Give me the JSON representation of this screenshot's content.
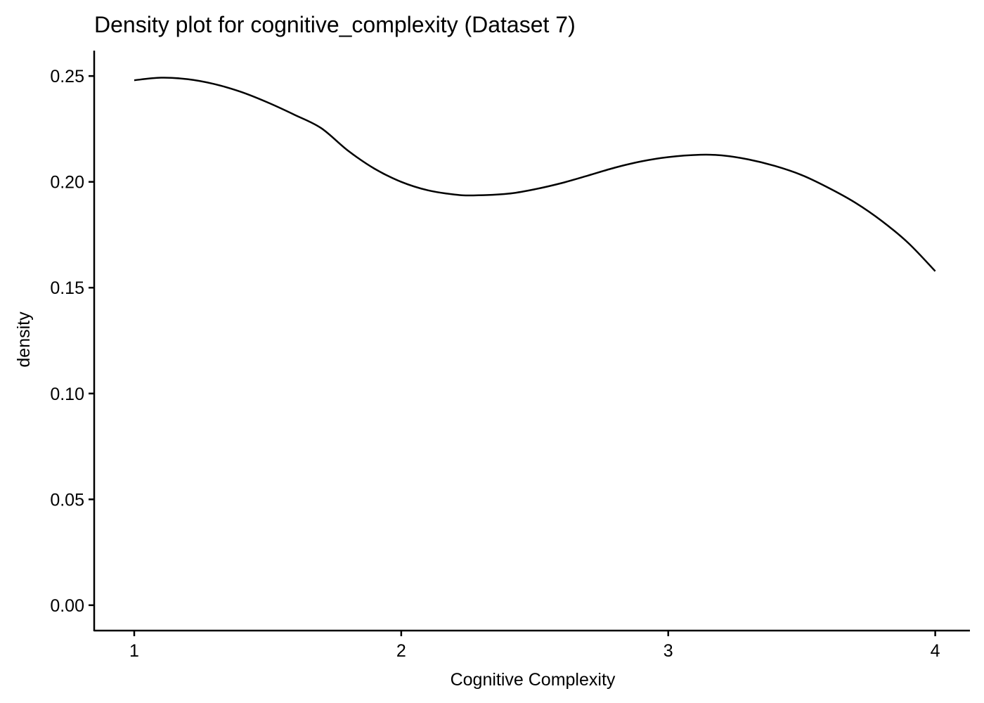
{
  "chart_data": {
    "type": "line",
    "title": "Density plot for cognitive_complexity (Dataset 7)",
    "xlabel": "Cognitive Complexity",
    "ylabel": "density",
    "xlim": [
      0.85,
      4.13
    ],
    "ylim": [
      -0.012,
      0.262
    ],
    "x_ticks": [
      1,
      2,
      3,
      4
    ],
    "x_tick_labels": [
      "1",
      "2",
      "3",
      "4"
    ],
    "y_ticks": [
      0,
      0.05,
      0.1,
      0.15,
      0.2,
      0.25
    ],
    "y_tick_labels": [
      "0.00",
      "0.05",
      "0.10",
      "0.15",
      "0.20",
      "0.25"
    ],
    "grid": false,
    "line_color": "#000000",
    "series": [
      {
        "x": [
          1.0,
          1.1,
          1.2,
          1.3,
          1.4,
          1.5,
          1.6,
          1.7,
          1.8,
          1.9,
          2.0,
          2.1,
          2.2,
          2.27,
          2.4,
          2.5,
          2.6,
          2.7,
          2.8,
          2.9,
          3.0,
          3.12,
          3.2,
          3.3,
          3.4,
          3.5,
          3.6,
          3.7,
          3.8,
          3.9,
          4.0
        ],
        "y": [
          0.248,
          0.2492,
          0.2485,
          0.2462,
          0.2425,
          0.2375,
          0.2317,
          0.2254,
          0.2148,
          0.2062,
          0.2,
          0.196,
          0.194,
          0.1936,
          0.1944,
          0.1965,
          0.1994,
          0.203,
          0.2067,
          0.2097,
          0.2117,
          0.2128,
          0.2125,
          0.2106,
          0.2075,
          0.2032,
          0.1972,
          0.1902,
          0.1815,
          0.171,
          0.1578
        ]
      }
    ]
  }
}
